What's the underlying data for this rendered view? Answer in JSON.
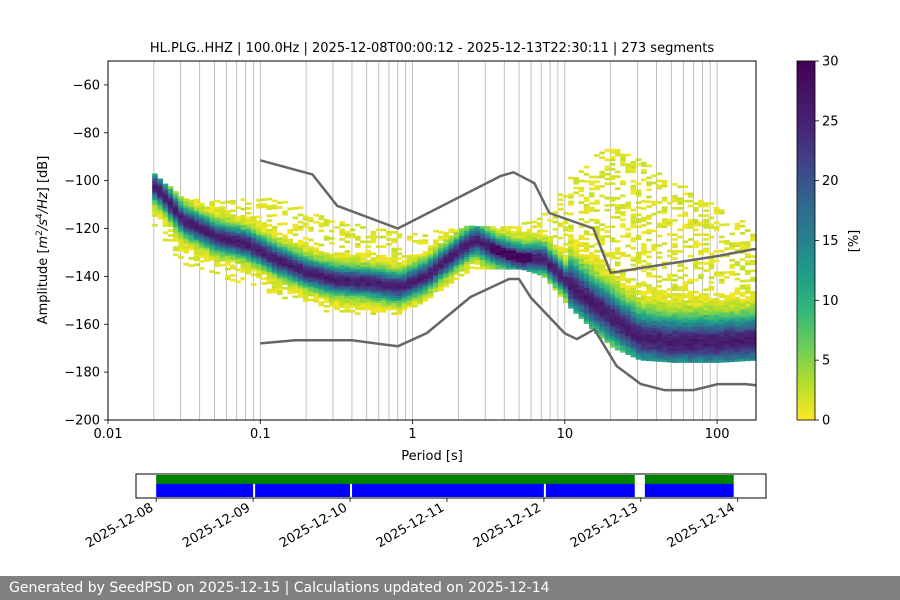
{
  "chart_data": [
    {
      "type": "heatmap",
      "title": "HL.PLG..HHZ | 100.0Hz | 2025-12-08T00:00:12 - 2025-12-13T22:30:11 | 273 segments",
      "xlabel": "Period [s]",
      "ylabel": "Amplitude [m²/s⁴/Hz] [dB]",
      "x_scale": "log",
      "xlim": [
        0.01,
        180
      ],
      "ylim": [
        -200,
        -50
      ],
      "x_ticks": [
        "0.01",
        "0.1",
        "1",
        "10",
        "100"
      ],
      "x_tick_values": [
        0.01,
        0.1,
        1,
        10,
        100
      ],
      "y_ticks": [
        "−200",
        "−180",
        "−160",
        "−140",
        "−120",
        "−100",
        "−80",
        "−60"
      ],
      "y_tick_values": [
        -200,
        -180,
        -160,
        -140,
        -120,
        -100,
        -80,
        -60
      ],
      "grid": "vertical log gridlines",
      "colorbar": {
        "label": "[%]",
        "range": [
          0,
          30
        ],
        "ticks": [
          "0",
          "5",
          "10",
          "15",
          "20",
          "25",
          "30"
        ],
        "tick_values": [
          0,
          5,
          10,
          15,
          20,
          25,
          30
        ],
        "colormap": "viridis_r"
      },
      "mode_curve": {
        "period": [
          0.02,
          0.03,
          0.05,
          0.08,
          0.12,
          0.2,
          0.3,
          0.5,
          0.8,
          1.2,
          2.0,
          2.5,
          3.5,
          5.0,
          7.0,
          10,
          15,
          20,
          30,
          50,
          100,
          180
        ],
        "db": [
          -103,
          -117,
          -124,
          -127,
          -133,
          -139,
          -142,
          -143,
          -145,
          -140,
          -129,
          -125,
          -130,
          -133,
          -133,
          -143,
          -152,
          -158,
          -166,
          -168,
          -168,
          -167
        ]
      },
      "spread_db": {
        "period": [
          0.02,
          0.03,
          0.05,
          0.08,
          0.12,
          0.2,
          0.3,
          0.5,
          0.8,
          1.2,
          2.0,
          2.5,
          3.5,
          5.0,
          7.0,
          10,
          15,
          20,
          30,
          50,
          100,
          180
        ],
        "low": [
          -120,
          -136,
          -140,
          -144,
          -148,
          -153,
          -156,
          -156,
          -156,
          -150,
          -140,
          -137,
          -137,
          -137,
          -140,
          -152,
          -163,
          -170,
          -175,
          -176,
          -176,
          -175
        ],
        "high": [
          -98,
          -108,
          -109,
          -108,
          -108,
          -113,
          -117,
          -120,
          -122,
          -122,
          -120,
          -119,
          -120,
          -118,
          -115,
          -100,
          -90,
          -86,
          -92,
          -100,
          -112,
          -121
        ]
      },
      "nhnm": {
        "period": [
          0.1,
          0.22,
          0.32,
          0.8,
          3.8,
          4.6,
          6.3,
          7.9,
          15.4,
          20,
          100,
          180
        ],
        "db": [
          -91.5,
          -97.4,
          -110.5,
          -120,
          -98,
          -96.5,
          -101,
          -113.5,
          -120,
          -138.5,
          -131.5,
          -128.5
        ]
      },
      "nlnm": {
        "period": [
          0.1,
          0.17,
          0.4,
          0.8,
          1.24,
          2.4,
          4.3,
          5.0,
          6.0,
          10,
          12,
          15.6,
          21.9,
          31.6,
          45,
          70,
          101,
          154,
          180
        ],
        "db": [
          -168,
          -166.7,
          -166.7,
          -169.2,
          -163.7,
          -148.6,
          -141.1,
          -141.1,
          -149,
          -163.8,
          -166.2,
          -162.1,
          -177.5,
          -185,
          -187.5,
          -187.5,
          -185,
          -185,
          -185.5
        ]
      }
    },
    {
      "type": "timeline",
      "x_ticks": [
        "2025-12-08",
        "2025-12-09",
        "2025-12-10",
        "2025-12-11",
        "2025-12-12",
        "2025-12-13",
        "2025-12-14"
      ],
      "xlim": [
        "2025-12-07T19:00",
        "2025-12-14T07:00"
      ],
      "coverage_green": [
        [
          "2025-12-08T00:00",
          "2025-12-12T22:30"
        ],
        [
          "2025-12-13T01:00",
          "2025-12-13T23:00"
        ]
      ],
      "coverage_blue": [
        [
          "2025-12-08T00:00",
          "2025-12-09T00:00"
        ],
        [
          "2025-12-09T00:30",
          "2025-12-10T00:00"
        ],
        [
          "2025-12-10T00:30",
          "2025-12-12T00:00"
        ],
        [
          "2025-12-12T00:30",
          "2025-12-12T22:30"
        ],
        [
          "2025-12-13T01:00",
          "2025-12-13T23:00"
        ]
      ]
    }
  ],
  "footer": {
    "text": "Generated by SeedPSD on 2025-12-15 | Calculations updated on 2025-12-14"
  },
  "colors": {
    "model_line": "#666666",
    "grid": "#b0b0b0",
    "coverage_green": "#008000",
    "coverage_blue": "#0000ff",
    "footer_bg": "#808080"
  }
}
